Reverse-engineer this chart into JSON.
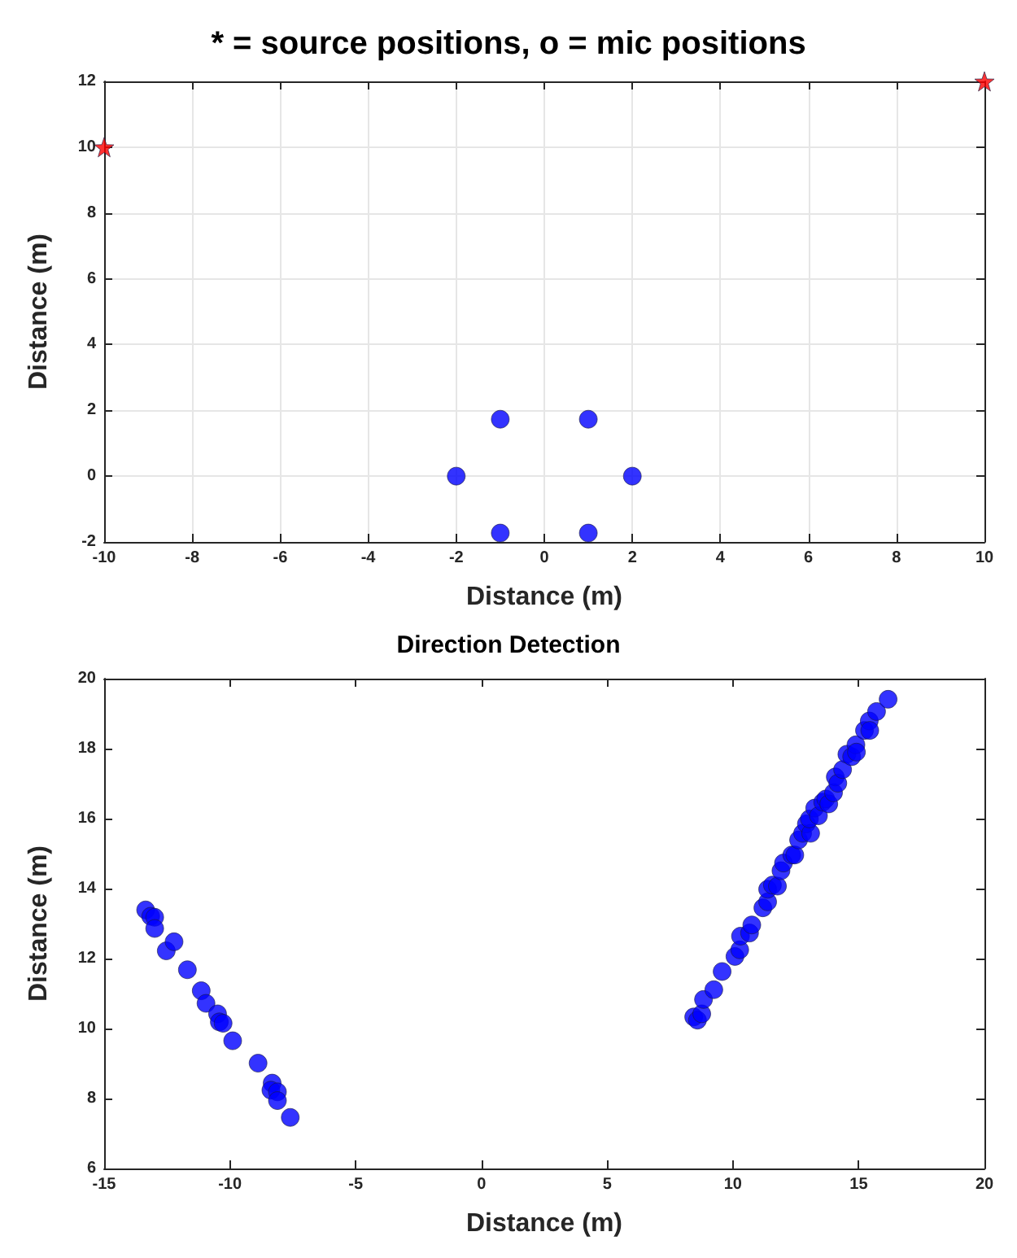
{
  "chart_data": [
    {
      "type": "scatter",
      "title": "* = source positions, o = mic positions",
      "xlabel": "Distance (m)",
      "ylabel": "Distance (m)",
      "xlim": [
        -10,
        10
      ],
      "ylim": [
        -2,
        12
      ],
      "xticks": [
        -10,
        -8,
        -6,
        -4,
        -2,
        0,
        2,
        4,
        6,
        8,
        10
      ],
      "yticks": [
        -2,
        0,
        2,
        4,
        6,
        8,
        10,
        12
      ],
      "grid": true,
      "series": [
        {
          "color": "#0000ff",
          "marker": "circle",
          "x": [
            -2,
            2,
            -1,
            1,
            -1,
            1
          ],
          "values": [
            0,
            0,
            1.73,
            1.73,
            -1.73,
            -1.73
          ]
        },
        {
          "color": "#ff0000",
          "marker": "star",
          "x": [
            -10,
            10
          ],
          "values": [
            10,
            12
          ]
        }
      ]
    },
    {
      "type": "scatter",
      "title": "Direction Detection",
      "xlabel": "Distance (m)",
      "ylabel": "Distance (m)",
      "xlim": [
        -15,
        20
      ],
      "ylim": [
        6,
        20
      ],
      "xticks": [
        -15,
        -10,
        -5,
        0,
        5,
        10,
        15,
        20
      ],
      "yticks": [
        6,
        8,
        10,
        12,
        14,
        16,
        18,
        20
      ],
      "grid": false,
      "series": [
        {
          "color": "#0000ff",
          "marker": "circle",
          "x": [
            -13.35,
            -13.15,
            -12.99,
            -12.99,
            -12.53,
            -12.22,
            -11.69,
            -11.14,
            -10.95,
            -10.49,
            -10.42,
            -10.27,
            -9.89,
            -8.88,
            -8.32,
            -8.37,
            -8.11,
            -8.11,
            -7.6,
            8.44,
            8.59,
            8.76,
            8.83,
            9.24,
            9.57,
            10.08,
            10.27,
            10.3,
            10.66,
            10.75,
            11.19,
            11.38,
            11.38,
            11.57,
            11.77,
            11.91,
            12.01,
            12.34,
            12.46,
            12.61,
            12.77,
            12.92,
            13.09,
            13.04,
            13.25,
            13.4,
            13.57,
            13.69,
            13.81,
            14.0,
            14.07,
            14.17,
            14.36,
            14.53,
            14.72,
            14.89,
            14.91,
            15.23,
            15.42,
            15.44,
            15.71,
            16.17
          ],
          "values": [
            13.39,
            13.21,
            13.18,
            12.86,
            12.22,
            12.48,
            11.68,
            11.08,
            10.72,
            10.42,
            10.19,
            10.15,
            9.65,
            9.01,
            8.44,
            8.24,
            8.19,
            7.94,
            7.46,
            10.33,
            10.24,
            10.42,
            10.83,
            11.11,
            11.63,
            12.06,
            12.25,
            12.64,
            12.73,
            12.96,
            13.45,
            13.62,
            13.98,
            14.1,
            14.07,
            14.51,
            14.73,
            14.96,
            14.96,
            15.39,
            15.58,
            15.85,
            15.58,
            15.99,
            16.3,
            16.08,
            16.47,
            16.56,
            16.42,
            16.74,
            17.19,
            17.01,
            17.4,
            17.84,
            17.77,
            18.11,
            17.9,
            18.52,
            18.79,
            18.52,
            19.06,
            19.41
          ]
        }
      ]
    }
  ]
}
